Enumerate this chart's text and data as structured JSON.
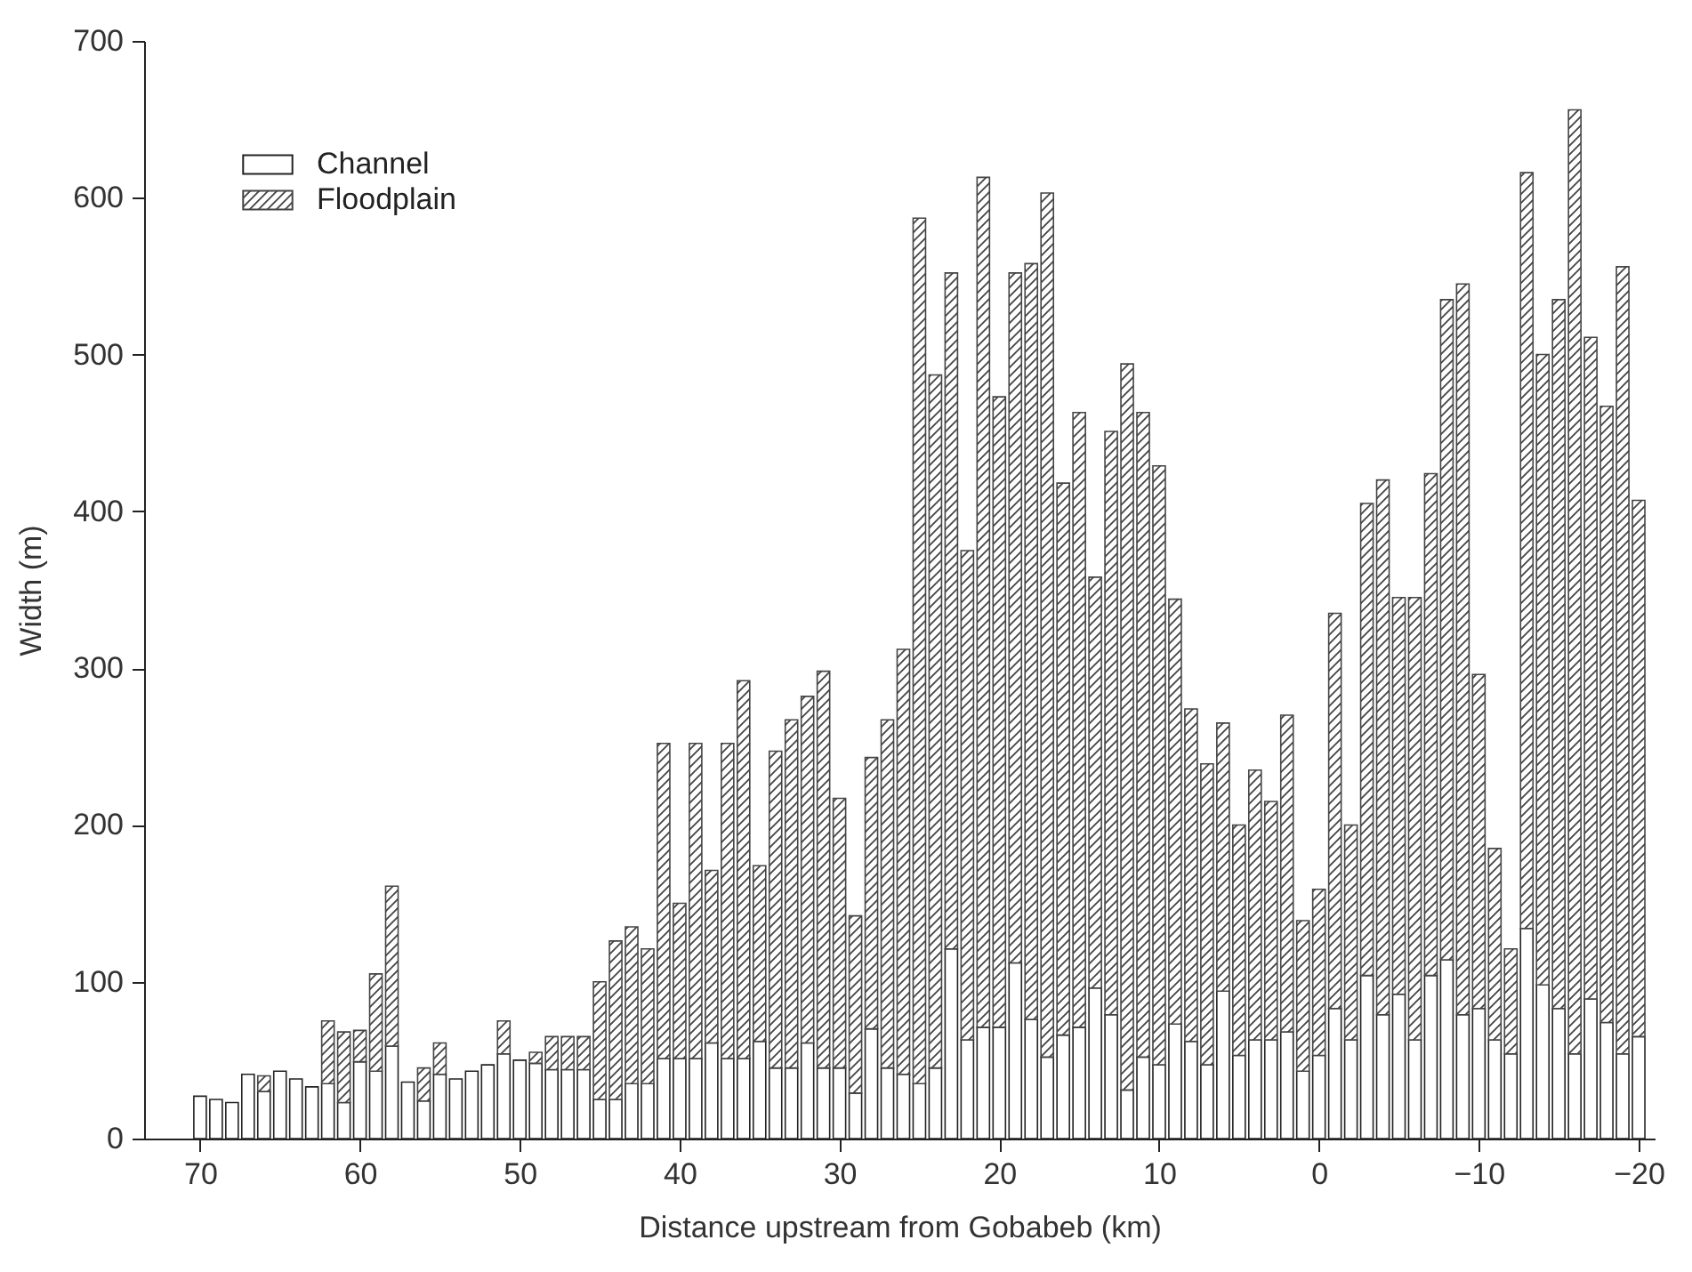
{
  "chart_data": {
    "type": "bar",
    "stacked": true,
    "xlabel": "Distance upstream from Gobabeb (km)",
    "ylabel": "Width (m)",
    "x": [
      70,
      69,
      68,
      67,
      66,
      65,
      64,
      63,
      62,
      61,
      60,
      59,
      58,
      57,
      56,
      55,
      54,
      53,
      52,
      51,
      50,
      49,
      48,
      47,
      46,
      45,
      44,
      43,
      42,
      41,
      40,
      39,
      38,
      37,
      36,
      35,
      34,
      33,
      32,
      31,
      30,
      29,
      28,
      27,
      26,
      25,
      24,
      23,
      22,
      21,
      20,
      19,
      18,
      17,
      16,
      15,
      14,
      13,
      12,
      11,
      10,
      9,
      8,
      7,
      6,
      5,
      4,
      3,
      2,
      1,
      0,
      -1,
      -2,
      -3,
      -4,
      -5,
      -6,
      -7,
      -8,
      -9,
      -10,
      -11,
      -12,
      -13,
      -14,
      -15,
      -16,
      -17,
      -18,
      -19,
      -20
    ],
    "series": [
      {
        "name": "Channel",
        "color": "#ffffff",
        "values": [
          27,
          25,
          23,
          41,
          30,
          43,
          38,
          33,
          35,
          23,
          49,
          43,
          59,
          36,
          24,
          41,
          38,
          43,
          47,
          54,
          50,
          48,
          44,
          44,
          44,
          25,
          25,
          35,
          35,
          51,
          51,
          51,
          61,
          51,
          51,
          62,
          45,
          45,
          61,
          45,
          45,
          29,
          70,
          45,
          41,
          35,
          45,
          121,
          63,
          71,
          71,
          112,
          76,
          52,
          66,
          71,
          96,
          79,
          31,
          52,
          47,
          73,
          62,
          47,
          94,
          53,
          63,
          63,
          68,
          43,
          53,
          83,
          63,
          104,
          79,
          92,
          63,
          104,
          114,
          79,
          83,
          63,
          54,
          134,
          98,
          83,
          54,
          89,
          74,
          54,
          65
        ]
      },
      {
        "name": "Floodplain",
        "color": "#444444",
        "values": [
          null,
          null,
          null,
          null,
          10,
          null,
          null,
          null,
          40,
          45,
          20,
          62,
          102,
          null,
          21,
          20,
          null,
          null,
          null,
          21,
          null,
          7,
          21,
          21,
          21,
          75,
          101,
          100,
          86,
          201,
          99,
          201,
          110,
          201,
          241,
          112,
          202,
          222,
          221,
          253,
          172,
          113,
          173,
          222,
          271,
          552,
          442,
          431,
          312,
          542,
          402,
          440,
          482,
          551,
          352,
          392,
          262,
          372,
          463,
          411,
          382,
          271,
          212,
          192,
          171,
          147,
          172,
          152,
          202,
          96,
          106,
          252,
          137,
          301,
          341,
          253,
          282,
          320,
          421,
          466,
          213,
          122,
          67,
          482,
          402,
          452,
          602,
          422,
          393,
          502,
          342
        ]
      }
    ],
    "xlim": [
      73.5,
      -21
    ],
    "xticks": [
      70,
      60,
      50,
      40,
      30,
      20,
      10,
      0,
      -10,
      -20
    ],
    "ylim": [
      0,
      700
    ],
    "yticks": [
      0,
      100,
      200,
      300,
      400,
      500,
      600,
      700
    ],
    "legend": "top left"
  }
}
